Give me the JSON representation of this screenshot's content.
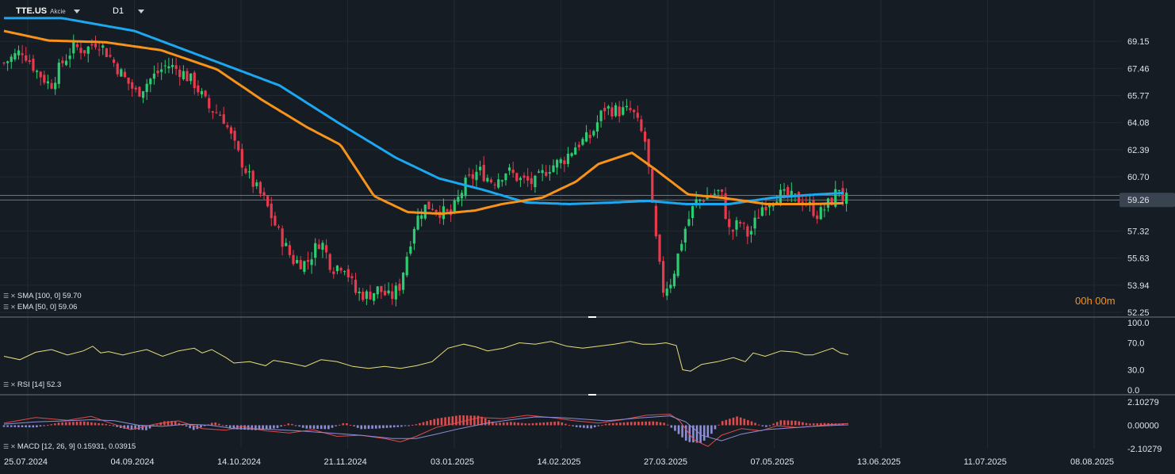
{
  "header": {
    "symbol": "TTE.US",
    "asset_class": "Akcie",
    "timeframe": "D1"
  },
  "countdown": "00h 00m",
  "indicators": {
    "sma": {
      "label": "SMA [100, 0] 59.70",
      "color": "#1ba8f0"
    },
    "ema": {
      "label": "EMA [50, 0] 59.06",
      "color": "#f7931a"
    },
    "rsi": {
      "label": "RSI [14] 52.3",
      "color": "#e8e07a"
    },
    "macd": {
      "label": "MACD [12, 26, 9] 0.15931, 0.03915",
      "line_color": "#e14b4b",
      "signal_color": "#8e8ed8"
    }
  },
  "colors": {
    "background": "#151c23",
    "grid": "#212a33",
    "bull": "#2ecc71",
    "bear": "#e8394d",
    "price_tag": "#3a4350"
  },
  "chart_data": [
    {
      "type": "candlestick",
      "panel": "price",
      "price_tag": "59.26",
      "price_tag_hidden": "59.55",
      "y_ticks": [
        "69.15",
        "67.46",
        "65.77",
        "64.08",
        "62.39",
        "60.70",
        "57.32",
        "55.63",
        "53.94",
        "52.25"
      ],
      "ylim": [
        52.25,
        70.84
      ],
      "x_ticks": [
        "25.07.2024",
        "04.09.2024",
        "14.10.2024",
        "21.11.2024",
        "03.01.2025",
        "14.02.2025",
        "27.03.2025",
        "07.05.2025",
        "13.06.2025",
        "11.07.2025",
        "08.08.2025"
      ],
      "bars": 231,
      "close_anchors": [
        [
          0,
          67.8
        ],
        [
          8,
          68.6
        ],
        [
          14,
          67.3
        ],
        [
          20,
          66.4
        ],
        [
          25,
          67.8
        ],
        [
          30,
          68.8
        ],
        [
          35,
          68.6
        ],
        [
          40,
          69.2
        ],
        [
          45,
          68.3
        ],
        [
          52,
          66.8
        ],
        [
          57,
          65.9
        ],
        [
          63,
          66.8
        ],
        [
          70,
          67.7
        ],
        [
          76,
          67.3
        ],
        [
          82,
          66.5
        ],
        [
          88,
          65.0
        ],
        [
          94,
          64.5
        ],
        [
          100,
          62.3
        ],
        [
          106,
          60.5
        ],
        [
          112,
          59.2
        ],
        [
          118,
          57.2
        ],
        [
          124,
          55.5
        ],
        [
          130,
          55.3
        ],
        [
          136,
          56.8
        ],
        [
          141,
          55.0
        ],
        [
          146,
          55.3
        ],
        [
          151,
          53.5
        ],
        [
          156,
          53.3
        ],
        [
          161,
          53.7
        ],
        [
          166,
          53.1
        ],
        [
          170,
          53.9
        ],
        [
          176,
          57.6
        ],
        [
          180,
          58.8
        ],
        [
          184,
          58.9
        ],
        [
          188,
          58.5
        ],
        [
          192,
          58.3
        ],
        [
          198,
          60.2
        ],
        [
          204,
          61.1
        ],
        [
          210,
          60.4
        ],
        [
          216,
          61.1
        ],
        [
          222,
          60.5
        ],
        [
          228,
          60.3
        ],
        [
          234,
          61.3
        ],
        [
          240,
          61.7
        ],
        [
          246,
          62.7
        ],
        [
          252,
          63.2
        ],
        [
          258,
          65.0
        ],
        [
          264,
          64.8
        ],
        [
          270,
          64.8
        ],
        [
          276,
          62.7
        ],
        [
          279,
          58.0
        ],
        [
          283,
          53.6
        ],
        [
          287,
          54.3
        ],
        [
          292,
          57.2
        ],
        [
          297,
          59.1
        ],
        [
          302,
          59.5
        ],
        [
          308,
          59.8
        ],
        [
          312,
          57.1
        ],
        [
          316,
          57.9
        ],
        [
          320,
          57.0
        ],
        [
          326,
          58.9
        ],
        [
          332,
          59.6
        ],
        [
          338,
          59.4
        ],
        [
          344,
          59.2
        ],
        [
          350,
          58.3
        ],
        [
          356,
          59.3
        ],
        [
          359,
          60.1
        ],
        [
          361,
          59.1
        ],
        [
          362,
          59.3
        ]
      ],
      "first_index": 131,
      "sma_100": [
        [
          0,
          70.6
        ],
        [
          40,
          70.6
        ],
        [
          90,
          69.8
        ],
        [
          140,
          68.1
        ],
        [
          190,
          66.4
        ],
        [
          230,
          64.1
        ],
        [
          270,
          61.9
        ],
        [
          300,
          60.6
        ],
        [
          330,
          59.9
        ],
        [
          360,
          59.1
        ],
        [
          390,
          59.0
        ],
        [
          420,
          59.1
        ],
        [
          444,
          59.2
        ],
        [
          470,
          59.0
        ],
        [
          500,
          59.0
        ],
        [
          530,
          59.4
        ],
        [
          560,
          59.6
        ],
        [
          580,
          59.7
        ]
      ],
      "ema_50": [
        [
          0,
          69.8
        ],
        [
          40,
          69.2
        ],
        [
          90,
          69.1
        ],
        [
          140,
          68.6
        ],
        [
          190,
          67.4
        ],
        [
          230,
          65.5
        ],
        [
          270,
          63.8
        ],
        [
          300,
          62.7
        ],
        [
          330,
          59.5
        ],
        [
          360,
          58.5
        ],
        [
          390,
          58.4
        ],
        [
          420,
          58.6
        ],
        [
          444,
          59.0
        ],
        [
          480,
          59.4
        ],
        [
          510,
          60.4
        ],
        [
          530,
          61.5
        ],
        [
          560,
          62.2
        ],
        [
          580,
          61.2
        ],
        [
          610,
          59.6
        ],
        [
          640,
          59.4
        ],
        [
          680,
          59.0
        ],
        [
          720,
          59.0
        ],
        [
          750,
          59.06
        ]
      ],
      "sma_start_index": 0
    },
    {
      "type": "line",
      "panel": "rsi",
      "y_ticks": [
        "100.0",
        "70.0",
        "30.0",
        "0.0"
      ],
      "ylim": [
        0,
        100
      ],
      "values": [
        [
          0,
          50
        ],
        [
          20,
          45
        ],
        [
          40,
          56
        ],
        [
          60,
          60
        ],
        [
          80,
          52
        ],
        [
          100,
          58
        ],
        [
          112,
          65
        ],
        [
          122,
          55
        ],
        [
          132,
          57
        ],
        [
          150,
          52
        ],
        [
          160,
          55
        ],
        [
          180,
          60
        ],
        [
          200,
          50
        ],
        [
          220,
          58
        ],
        [
          240,
          62
        ],
        [
          250,
          55
        ],
        [
          262,
          60
        ],
        [
          280,
          48
        ],
        [
          290,
          40
        ],
        [
          310,
          42
        ],
        [
          330,
          36
        ],
        [
          340,
          44
        ],
        [
          360,
          40
        ],
        [
          380,
          35
        ],
        [
          400,
          45
        ],
        [
          420,
          42
        ],
        [
          440,
          35
        ],
        [
          460,
          32
        ],
        [
          480,
          35
        ],
        [
          500,
          32
        ],
        [
          520,
          36
        ],
        [
          540,
          42
        ],
        [
          560,
          62
        ],
        [
          580,
          68
        ],
        [
          595,
          64
        ],
        [
          610,
          58
        ],
        [
          630,
          62
        ],
        [
          650,
          70
        ],
        [
          670,
          68
        ],
        [
          690,
          72
        ],
        [
          710,
          65
        ],
        [
          730,
          62
        ],
        [
          750,
          65
        ],
        [
          770,
          68
        ],
        [
          790,
          72
        ],
        [
          805,
          68
        ],
        [
          820,
          68
        ],
        [
          835,
          70
        ],
        [
          848,
          66
        ],
        [
          856,
          30
        ],
        [
          866,
          28
        ],
        [
          880,
          38
        ],
        [
          900,
          42
        ],
        [
          920,
          48
        ],
        [
          935,
          42
        ],
        [
          945,
          55
        ],
        [
          960,
          50
        ],
        [
          980,
          58
        ],
        [
          1000,
          56
        ],
        [
          1010,
          52
        ],
        [
          1020,
          52
        ],
        [
          1035,
          58
        ],
        [
          1045,
          62
        ],
        [
          1055,
          55
        ],
        [
          1065,
          52.3
        ]
      ]
    },
    {
      "type": "bar+line",
      "panel": "macd",
      "y_ticks": [
        "2.10279",
        "0.00000",
        "-2.10279"
      ],
      "ylim": [
        -2.10279,
        2.10279
      ],
      "histogram_anchors": [
        [
          0,
          -0.15
        ],
        [
          40,
          -0.2
        ],
        [
          70,
          0.25
        ],
        [
          100,
          0.35
        ],
        [
          130,
          0.1
        ],
        [
          150,
          -0.3
        ],
        [
          180,
          -0.45
        ],
        [
          200,
          0.35
        ],
        [
          215,
          0.4
        ],
        [
          240,
          -0.45
        ],
        [
          265,
          0.3
        ],
        [
          290,
          -0.35
        ],
        [
          320,
          -0.45
        ],
        [
          345,
          -0.25
        ],
        [
          360,
          0.2
        ],
        [
          380,
          -0.3
        ],
        [
          410,
          -0.35
        ],
        [
          430,
          0.25
        ],
        [
          450,
          -0.35
        ],
        [
          470,
          -0.3
        ],
        [
          500,
          -0.15
        ],
        [
          520,
          0.1
        ],
        [
          545,
          0.6
        ],
        [
          575,
          0.9
        ],
        [
          600,
          0.85
        ],
        [
          620,
          0.2
        ],
        [
          640,
          0.3
        ],
        [
          660,
          0.15
        ],
        [
          680,
          0.25
        ],
        [
          700,
          0.35
        ],
        [
          720,
          -0.15
        ],
        [
          740,
          -0.3
        ],
        [
          760,
          0.15
        ],
        [
          790,
          0.3
        ],
        [
          820,
          0.35
        ],
        [
          835,
          0.2
        ],
        [
          848,
          -0.6
        ],
        [
          862,
          -1.5
        ],
        [
          880,
          -1.6
        ],
        [
          892,
          -0.8
        ],
        [
          905,
          0.35
        ],
        [
          925,
          0.8
        ],
        [
          945,
          0.3
        ],
        [
          960,
          -0.2
        ],
        [
          980,
          0.45
        ],
        [
          1000,
          0.4
        ],
        [
          1015,
          0.15
        ],
        [
          1035,
          0.2
        ],
        [
          1055,
          0.15
        ],
        [
          1065,
          0.16
        ]
      ],
      "macd_line": [
        [
          0,
          0.2
        ],
        [
          40,
          0.7
        ],
        [
          80,
          0.45
        ],
        [
          110,
          0.8
        ],
        [
          130,
          0.3
        ],
        [
          160,
          -0.4
        ],
        [
          190,
          0.1
        ],
        [
          220,
          0.4
        ],
        [
          250,
          -0.3
        ],
        [
          280,
          -0.45
        ],
        [
          300,
          -0.1
        ],
        [
          330,
          -0.5
        ],
        [
          360,
          -0.7
        ],
        [
          390,
          -0.4
        ],
        [
          420,
          -1.0
        ],
        [
          450,
          -0.9
        ],
        [
          480,
          -1.2
        ],
        [
          500,
          -1.5
        ],
        [
          520,
          -1.0
        ],
        [
          545,
          -0.2
        ],
        [
          570,
          0.2
        ],
        [
          600,
          0.7
        ],
        [
          630,
          0.6
        ],
        [
          660,
          0.9
        ],
        [
          690,
          0.7
        ],
        [
          720,
          0.4
        ],
        [
          750,
          0.2
        ],
        [
          780,
          0.5
        ],
        [
          810,
          0.9
        ],
        [
          840,
          1.0
        ],
        [
          852,
          0.4
        ],
        [
          870,
          -1.3
        ],
        [
          888,
          -1.9
        ],
        [
          905,
          -0.9
        ],
        [
          930,
          -0.3
        ],
        [
          955,
          -0.5
        ],
        [
          975,
          -0.05
        ],
        [
          1000,
          -0.2
        ],
        [
          1020,
          -0.1
        ],
        [
          1040,
          0.05
        ],
        [
          1065,
          0.15931
        ]
      ],
      "signal_line": [
        [
          0,
          0.1
        ],
        [
          40,
          0.3
        ],
        [
          80,
          0.4
        ],
        [
          110,
          0.5
        ],
        [
          140,
          0.4
        ],
        [
          170,
          0.0
        ],
        [
          200,
          -0.1
        ],
        [
          230,
          0.1
        ],
        [
          260,
          0.0
        ],
        [
          290,
          -0.3
        ],
        [
          330,
          -0.35
        ],
        [
          370,
          -0.5
        ],
        [
          410,
          -0.7
        ],
        [
          450,
          -0.9
        ],
        [
          490,
          -1.2
        ],
        [
          520,
          -1.2
        ],
        [
          545,
          -0.8
        ],
        [
          575,
          -0.3
        ],
        [
          610,
          0.2
        ],
        [
          640,
          0.5
        ],
        [
          670,
          0.75
        ],
        [
          700,
          0.7
        ],
        [
          730,
          0.55
        ],
        [
          760,
          0.4
        ],
        [
          800,
          0.65
        ],
        [
          840,
          0.85
        ],
        [
          860,
          0.3
        ],
        [
          880,
          -0.9
        ],
        [
          905,
          -1.4
        ],
        [
          930,
          -0.8
        ],
        [
          960,
          -0.4
        ],
        [
          990,
          -0.25
        ],
        [
          1020,
          -0.1
        ],
        [
          1050,
          0.0
        ],
        [
          1065,
          0.03915
        ]
      ]
    }
  ]
}
